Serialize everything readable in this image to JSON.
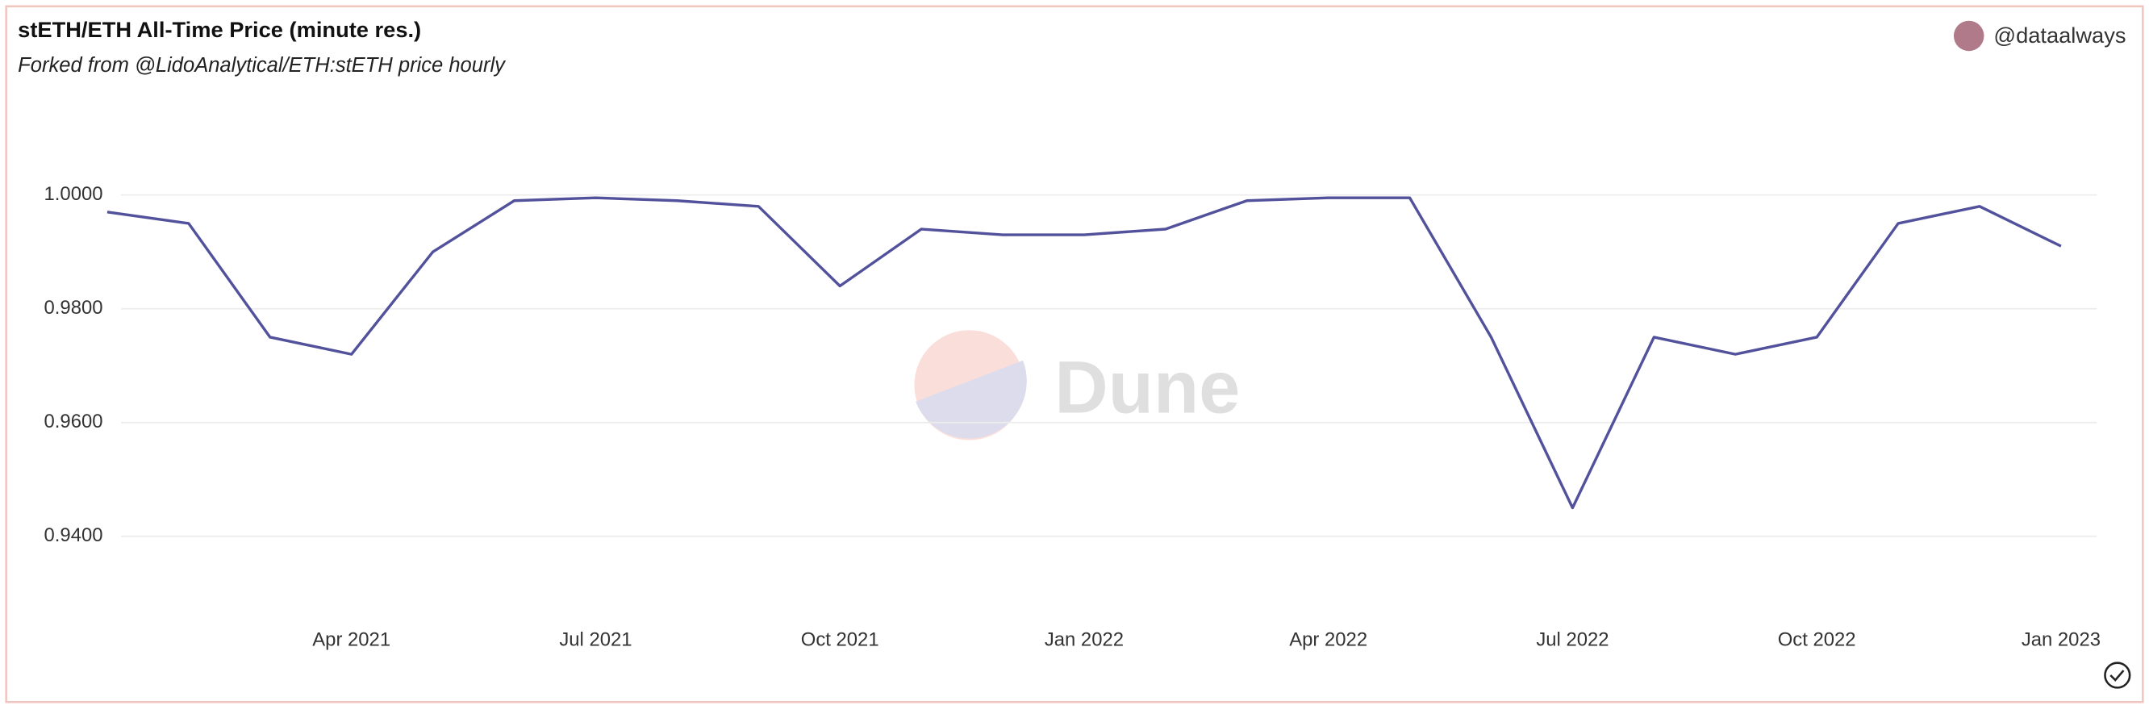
{
  "chart_data": {
    "type": "line",
    "title": "stETH/ETH All-Time Price (minute res.)",
    "subtitle": "Forked from @LidoAnalytical/ETH:stETH price hourly",
    "author": "@dataalways",
    "watermark": "Dune",
    "x": [
      "2021-01",
      "2021-02",
      "2021-03",
      "2021-04",
      "2021-05",
      "2021-06",
      "2021-07",
      "2021-08",
      "2021-09",
      "2021-10",
      "2021-11",
      "2021-12",
      "2022-01",
      "2022-02",
      "2022-03",
      "2022-04",
      "2022-05",
      "2022-06",
      "2022-07",
      "2022-08",
      "2022-09",
      "2022-10",
      "2022-11",
      "2022-12",
      "2023-01"
    ],
    "series": [
      {
        "name": "stETH/ETH",
        "color": "#52519b",
        "values": [
          0.997,
          0.995,
          0.975,
          0.972,
          0.99,
          0.999,
          0.9995,
          0.999,
          0.998,
          0.984,
          0.994,
          0.993,
          0.993,
          0.994,
          0.999,
          0.9995,
          0.9995,
          0.975,
          0.945,
          0.975,
          0.972,
          0.975,
          0.995,
          0.998,
          0.991
        ]
      }
    ],
    "xticks": [
      {
        "value": "2021-04",
        "label": "Apr 2021"
      },
      {
        "value": "2021-07",
        "label": "Jul 2021"
      },
      {
        "value": "2021-10",
        "label": "Oct 2021"
      },
      {
        "value": "2022-01",
        "label": "Jan 2022"
      },
      {
        "value": "2022-04",
        "label": "Apr 2022"
      },
      {
        "value": "2022-07",
        "label": "Jul 2022"
      },
      {
        "value": "2022-10",
        "label": "Oct 2022"
      },
      {
        "value": "2023-01",
        "label": "Jan 2023"
      }
    ],
    "ylim": [
      0.925,
      1.0125
    ],
    "yticks": [
      {
        "value": 0.94,
        "label": "0.9400"
      },
      {
        "value": 0.96,
        "label": "0.9600"
      },
      {
        "value": 0.98,
        "label": "0.9800"
      },
      {
        "value": 1.0,
        "label": "1.0000"
      }
    ],
    "grid": true
  }
}
